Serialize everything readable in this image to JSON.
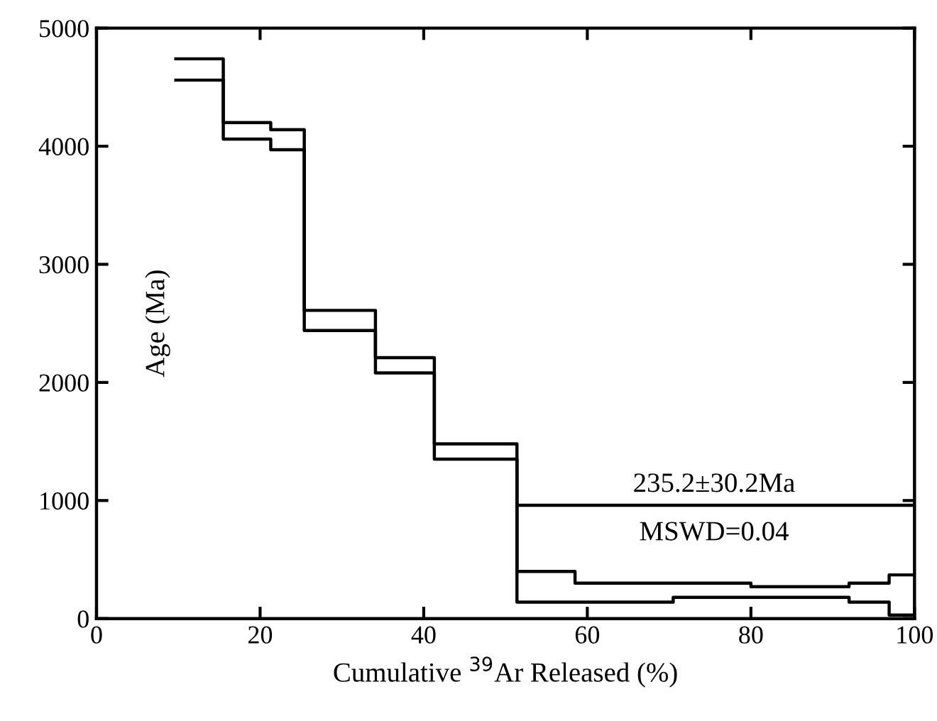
{
  "chart_data": {
    "type": "step",
    "xlabel": "Cumulative $^{39}$Ar Released (%)",
    "ylabel": "Age (Ma)",
    "x": [
      9.7,
      15.5,
      21.3,
      25.4,
      34.1,
      41.3,
      51.4,
      58.5,
      70.5,
      80.0,
      92.0,
      96.9,
      100
    ],
    "series": [
      {
        "color": "#000000",
        "values": [
          4740,
          4200,
          4140,
          2610,
          2210,
          1480,
          400,
          300,
          300,
          270,
          300,
          370,
          370
        ]
      },
      {
        "color": "#000000",
        "values": [
          4560,
          4060,
          3970,
          2440,
          2080,
          1350,
          140,
          140,
          180,
          180,
          140,
          30,
          30
        ]
      },
      {
        "type": "line",
        "color": "#000000",
        "x": [
          51.4,
          100
        ],
        "values": [
          960,
          960
        ]
      }
    ],
    "annotations": [
      "235.2±30.2Ma",
      "MSWD=0.04"
    ],
    "xlim": [
      0,
      100
    ],
    "xticks": [
      0,
      20,
      40,
      60,
      80,
      100
    ],
    "ylim": [
      0,
      5000
    ],
    "yticks": [
      0,
      1000,
      2000,
      3000,
      4000,
      5000
    ],
    "grid": false,
    "legend": false,
    "marker": "none",
    "line_style": "solid"
  }
}
